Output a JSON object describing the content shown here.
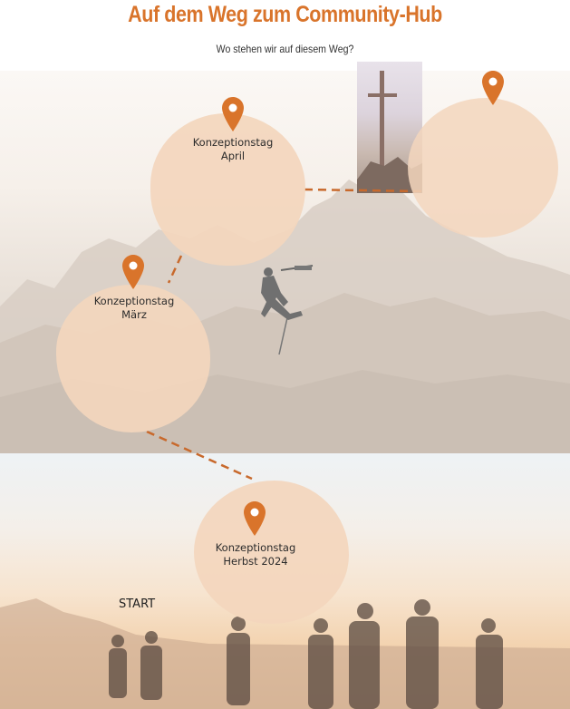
{
  "header": {
    "title": "Auf dem Weg zum Community-Hub",
    "subtitle": "Wo stehen wir auf diesem Weg?"
  },
  "milestones": [
    {
      "label": "Konzeptionstag\nHerbst 2024"
    },
    {
      "label": "Konzeptionstag\nMärz"
    },
    {
      "label": "Konzeptionstag\nApril"
    },
    {
      "label": ""
    }
  ],
  "start_label": "START",
  "colors": {
    "accent": "#d9742b",
    "blob": "#f3d6bd",
    "path": "#c8692c"
  }
}
